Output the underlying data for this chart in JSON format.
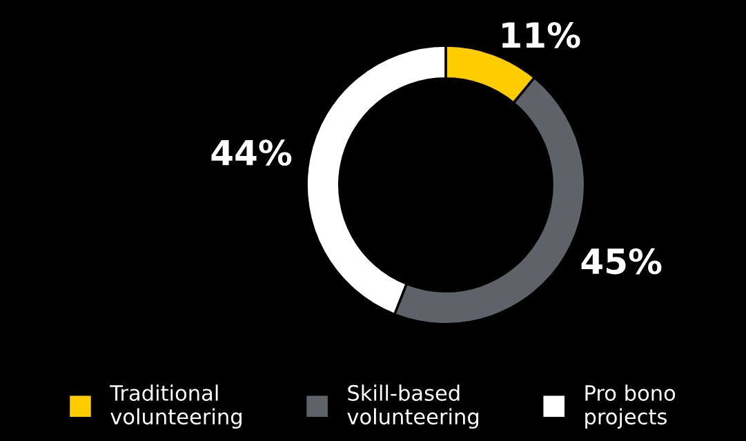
{
  "chart_data": {
    "type": "donut",
    "categories": [
      "Traditional\nvolunteering",
      "Skill-based\nvolunteering",
      "Pro bono\nprojects"
    ],
    "values": [
      11,
      45,
      44
    ],
    "colors": [
      "#ffcc00",
      "#5f6369",
      "#ffffff"
    ],
    "value_labels": [
      "11%",
      "45%",
      "44%"
    ],
    "legend": "bottom"
  }
}
